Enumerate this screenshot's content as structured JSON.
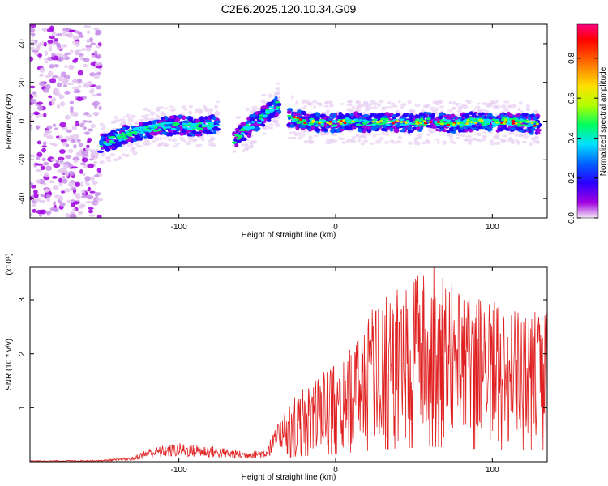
{
  "chart_data": [
    {
      "type": "heatmap",
      "title": "C2E6.2025.120.10.34.G09",
      "xlabel": "Height of straight line (km)",
      "ylabel": "Frequency (Hz)",
      "xlim": [
        -195,
        135
      ],
      "ylim": [
        -50,
        50
      ],
      "xticks": [
        -100,
        0,
        100
      ],
      "yticks": [
        -40,
        -20,
        0,
        20,
        40
      ],
      "colorbar": {
        "label": "Normalized spectral amplitude",
        "range": [
          0,
          0.97
        ],
        "ticks": [
          "0.0",
          "0.2",
          "0.4",
          "0.6",
          "0.8"
        ],
        "colormap": [
          "#f4e6f6",
          "#a000e0",
          "#2a00ff",
          "#0060ff",
          "#00e0ff",
          "#00ff60",
          "#b0ff00",
          "#ffe000",
          "#ff7000",
          "#ff0000",
          "#ff0080"
        ]
      },
      "ridge": [
        {
          "x": -150,
          "y": -12
        },
        {
          "x": -140,
          "y": -9
        },
        {
          "x": -130,
          "y": -6
        },
        {
          "x": -120,
          "y": -4
        },
        {
          "x": -110,
          "y": -3
        },
        {
          "x": -100,
          "y": -2
        },
        {
          "x": -90,
          "y": -3
        },
        {
          "x": -80,
          "y": -2
        },
        {
          "x": -75,
          "y": -1
        },
        {
          "x": -65,
          "y": -10
        },
        {
          "x": -60,
          "y": -6
        },
        {
          "x": -55,
          "y": -3
        },
        {
          "x": -50,
          "y": 0
        },
        {
          "x": -45,
          "y": 3
        },
        {
          "x": -40,
          "y": 6
        },
        {
          "x": -36,
          "y": 9
        },
        {
          "x": -30,
          "y": 2
        },
        {
          "x": -20,
          "y": 0
        },
        {
          "x": -10,
          "y": -1
        },
        {
          "x": 0,
          "y": -1
        },
        {
          "x": 10,
          "y": 0
        },
        {
          "x": 20,
          "y": -1
        },
        {
          "x": 30,
          "y": 0
        },
        {
          "x": 40,
          "y": -1
        },
        {
          "x": 50,
          "y": -1
        },
        {
          "x": 60,
          "y": 0
        },
        {
          "x": 70,
          "y": -1
        },
        {
          "x": 80,
          "y": -1
        },
        {
          "x": 90,
          "y": 0
        },
        {
          "x": 100,
          "y": -1
        },
        {
          "x": 110,
          "y": 0
        },
        {
          "x": 120,
          "y": -1
        },
        {
          "x": 130,
          "y": -2
        }
      ],
      "noise_region_x": [
        -195,
        -150
      ]
    },
    {
      "type": "line",
      "xlabel": "Height of straight line (km)",
      "ylabel": "SNR (10 * v/v)",
      "y_multiplier": "(x10⁴)",
      "xlim": [
        -195,
        135
      ],
      "ylim": [
        0,
        3.6
      ],
      "xticks": [
        -100,
        0,
        100
      ],
      "yticks": [
        1,
        2,
        3
      ],
      "line_color": "#e02020",
      "envelope": [
        {
          "x": -195,
          "y": 0.02
        },
        {
          "x": -150,
          "y": 0.03
        },
        {
          "x": -130,
          "y": 0.08
        },
        {
          "x": -120,
          "y": 0.25
        },
        {
          "x": -100,
          "y": 0.35
        },
        {
          "x": -80,
          "y": 0.3
        },
        {
          "x": -60,
          "y": 0.2
        },
        {
          "x": -45,
          "y": 0.25
        },
        {
          "x": -35,
          "y": 0.8
        },
        {
          "x": -25,
          "y": 1.2
        },
        {
          "x": -10,
          "y": 1.5
        },
        {
          "x": 0,
          "y": 1.8
        },
        {
          "x": 15,
          "y": 2.3
        },
        {
          "x": 30,
          "y": 2.9
        },
        {
          "x": 50,
          "y": 3.2
        },
        {
          "x": 60,
          "y": 3.5
        },
        {
          "x": 80,
          "y": 3.1
        },
        {
          "x": 100,
          "y": 2.8
        },
        {
          "x": 120,
          "y": 2.6
        },
        {
          "x": 135,
          "y": 2.7
        }
      ]
    }
  ]
}
